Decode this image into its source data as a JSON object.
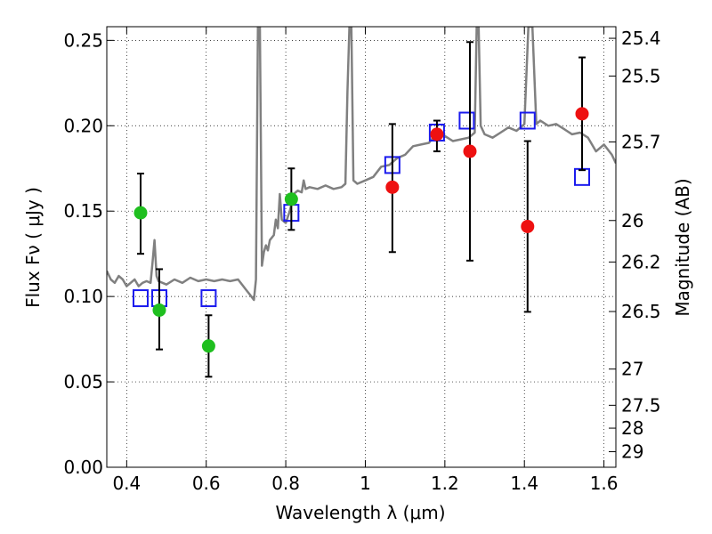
{
  "chart_data": {
    "type": "scatter",
    "xlabel": "Wavelength  λ (μm)",
    "ylabel": "Flux  Fν  ( μJy )",
    "ylabel_right": "Magnitude (AB)",
    "xlim": [
      0.35,
      1.63
    ],
    "ylim": [
      0.0,
      0.258
    ],
    "grid": true,
    "x_ticks": [
      0.4,
      0.6,
      0.8,
      1.0,
      1.2,
      1.4,
      1.6
    ],
    "x_tick_labels": [
      "0.4",
      "0.6",
      "0.8",
      "1",
      "1.2",
      "1.4",
      "1.6"
    ],
    "y_ticks": [
      0.0,
      0.05,
      0.1,
      0.15,
      0.2,
      0.25
    ],
    "y_tick_labels": [
      "0.00",
      "0.05",
      "0.10",
      "0.15",
      "0.20",
      "0.25"
    ],
    "mag_ticks": [
      {
        "label": "25.4",
        "flux": 0.2512
      },
      {
        "label": "25.5",
        "flux": 0.2291
      },
      {
        "label": "25.7",
        "flux": 0.1905
      },
      {
        "label": "26",
        "flux": 0.1445
      },
      {
        "label": "26.2",
        "flux": 0.1202
      },
      {
        "label": "26.5",
        "flux": 0.0912
      },
      {
        "label": "27",
        "flux": 0.0575
      },
      {
        "label": "27.5",
        "flux": 0.0363
      },
      {
        "label": "28",
        "flux": 0.0229
      },
      {
        "label": "29",
        "flux": 0.0091
      }
    ],
    "series": [
      {
        "marker": "circle",
        "color": "#1fbf1f",
        "points": [
          {
            "x": 0.435,
            "y": 0.149,
            "err": [
              0.125,
              0.172
            ]
          },
          {
            "x": 0.482,
            "y": 0.092,
            "err": [
              0.069,
              0.116
            ]
          },
          {
            "x": 0.606,
            "y": 0.071,
            "err": [
              0.053,
              0.089
            ]
          },
          {
            "x": 0.814,
            "y": 0.157,
            "err": [
              0.139,
              0.175
            ]
          }
        ]
      },
      {
        "marker": "circle",
        "color": "#ee1111",
        "points": [
          {
            "x": 1.068,
            "y": 0.164,
            "err": [
              0.126,
              0.201
            ]
          },
          {
            "x": 1.18,
            "y": 0.195,
            "err": [
              0.185,
              0.203
            ]
          },
          {
            "x": 1.263,
            "y": 0.185,
            "err": [
              0.121,
              0.249
            ]
          },
          {
            "x": 1.408,
            "y": 0.141,
            "err": [
              0.091,
              0.191
            ]
          },
          {
            "x": 1.545,
            "y": 0.207,
            "err": [
              0.174,
              0.24
            ]
          }
        ]
      },
      {
        "marker": "square",
        "color": "#1a1aee",
        "points": [
          {
            "x": 0.435,
            "y": 0.099
          },
          {
            "x": 0.482,
            "y": 0.099
          },
          {
            "x": 0.606,
            "y": 0.099
          },
          {
            "x": 0.814,
            "y": 0.149
          },
          {
            "x": 1.068,
            "y": 0.177
          },
          {
            "x": 1.18,
            "y": 0.196
          },
          {
            "x": 1.255,
            "y": 0.203
          },
          {
            "x": 1.408,
            "y": 0.203
          },
          {
            "x": 1.545,
            "y": 0.17
          }
        ]
      },
      {
        "marker": "line",
        "color": "#808080",
        "x": [
          0.35,
          0.36,
          0.37,
          0.38,
          0.39,
          0.4,
          0.41,
          0.42,
          0.43,
          0.44,
          0.45,
          0.46,
          0.465,
          0.47,
          0.475,
          0.48,
          0.49,
          0.5,
          0.52,
          0.54,
          0.56,
          0.58,
          0.6,
          0.62,
          0.64,
          0.66,
          0.68,
          0.7,
          0.71,
          0.72,
          0.725,
          0.73,
          0.735,
          0.74,
          0.745,
          0.75,
          0.755,
          0.76,
          0.77,
          0.775,
          0.78,
          0.785,
          0.79,
          0.8,
          0.81,
          0.82,
          0.83,
          0.84,
          0.845,
          0.85,
          0.86,
          0.88,
          0.9,
          0.92,
          0.94,
          0.95,
          0.955,
          0.96,
          0.965,
          0.97,
          0.98,
          1.0,
          1.02,
          1.04,
          1.06,
          1.08,
          1.1,
          1.12,
          1.14,
          1.16,
          1.18,
          1.2,
          1.22,
          1.24,
          1.26,
          1.275,
          1.28,
          1.285,
          1.29,
          1.3,
          1.32,
          1.34,
          1.36,
          1.38,
          1.4,
          1.41,
          1.42,
          1.43,
          1.44,
          1.46,
          1.48,
          1.5,
          1.52,
          1.54,
          1.56,
          1.58,
          1.6,
          1.62,
          1.63
        ],
        "y": [
          0.115,
          0.11,
          0.108,
          0.112,
          0.11,
          0.106,
          0.108,
          0.11,
          0.106,
          0.108,
          0.109,
          0.108,
          0.12,
          0.133,
          0.112,
          0.109,
          0.108,
          0.107,
          0.11,
          0.108,
          0.111,
          0.109,
          0.11,
          0.109,
          0.11,
          0.109,
          0.11,
          0.104,
          0.101,
          0.098,
          0.11,
          0.258,
          0.258,
          0.118,
          0.126,
          0.13,
          0.127,
          0.133,
          0.136,
          0.145,
          0.14,
          0.16,
          0.145,
          0.143,
          0.15,
          0.16,
          0.162,
          0.161,
          0.168,
          0.163,
          0.164,
          0.163,
          0.165,
          0.163,
          0.164,
          0.166,
          0.22,
          0.258,
          0.258,
          0.168,
          0.166,
          0.168,
          0.17,
          0.176,
          0.177,
          0.181,
          0.183,
          0.188,
          0.189,
          0.19,
          0.196,
          0.194,
          0.191,
          0.192,
          0.193,
          0.196,
          0.258,
          0.258,
          0.2,
          0.195,
          0.193,
          0.196,
          0.199,
          0.197,
          0.201,
          0.258,
          0.258,
          0.201,
          0.203,
          0.2,
          0.201,
          0.198,
          0.195,
          0.196,
          0.193,
          0.185,
          0.189,
          0.183,
          0.178
        ]
      }
    ]
  }
}
